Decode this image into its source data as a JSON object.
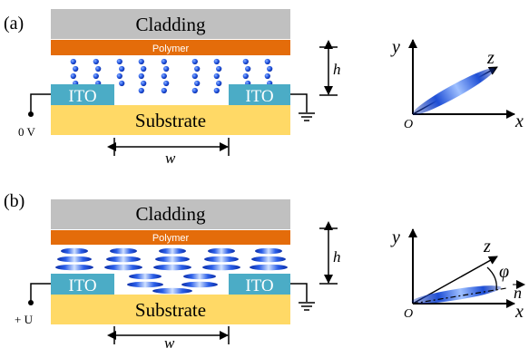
{
  "panel_a": {
    "label": "(a)",
    "cladding": "Cladding",
    "polymer": "Polymer",
    "electrode_left": "ITO",
    "electrode_right": "ITO",
    "substrate": "Substrate",
    "voltage": "0 V",
    "height_symbol": "h",
    "width_symbol": "w",
    "axis_x": "x",
    "axis_y": "y",
    "axis_z": "z",
    "origin": "O"
  },
  "panel_b": {
    "label": "(b)",
    "cladding": "Cladding",
    "polymer": "Polymer",
    "electrode_left": "ITO",
    "electrode_right": "ITO",
    "substrate": "Substrate",
    "voltage": "+ U",
    "height_symbol": "h",
    "width_symbol": "w",
    "axis_x": "x",
    "axis_y": "y",
    "axis_z": "z",
    "origin": "O",
    "angle_symbol": "φ",
    "director_symbol": "n"
  },
  "colors": {
    "cladding": "#c0c0c0",
    "polymer": "#e46c0a",
    "ito": "#4bacc6",
    "substrate": "#ffd966",
    "lc_molecule": "#1f4fd6"
  }
}
